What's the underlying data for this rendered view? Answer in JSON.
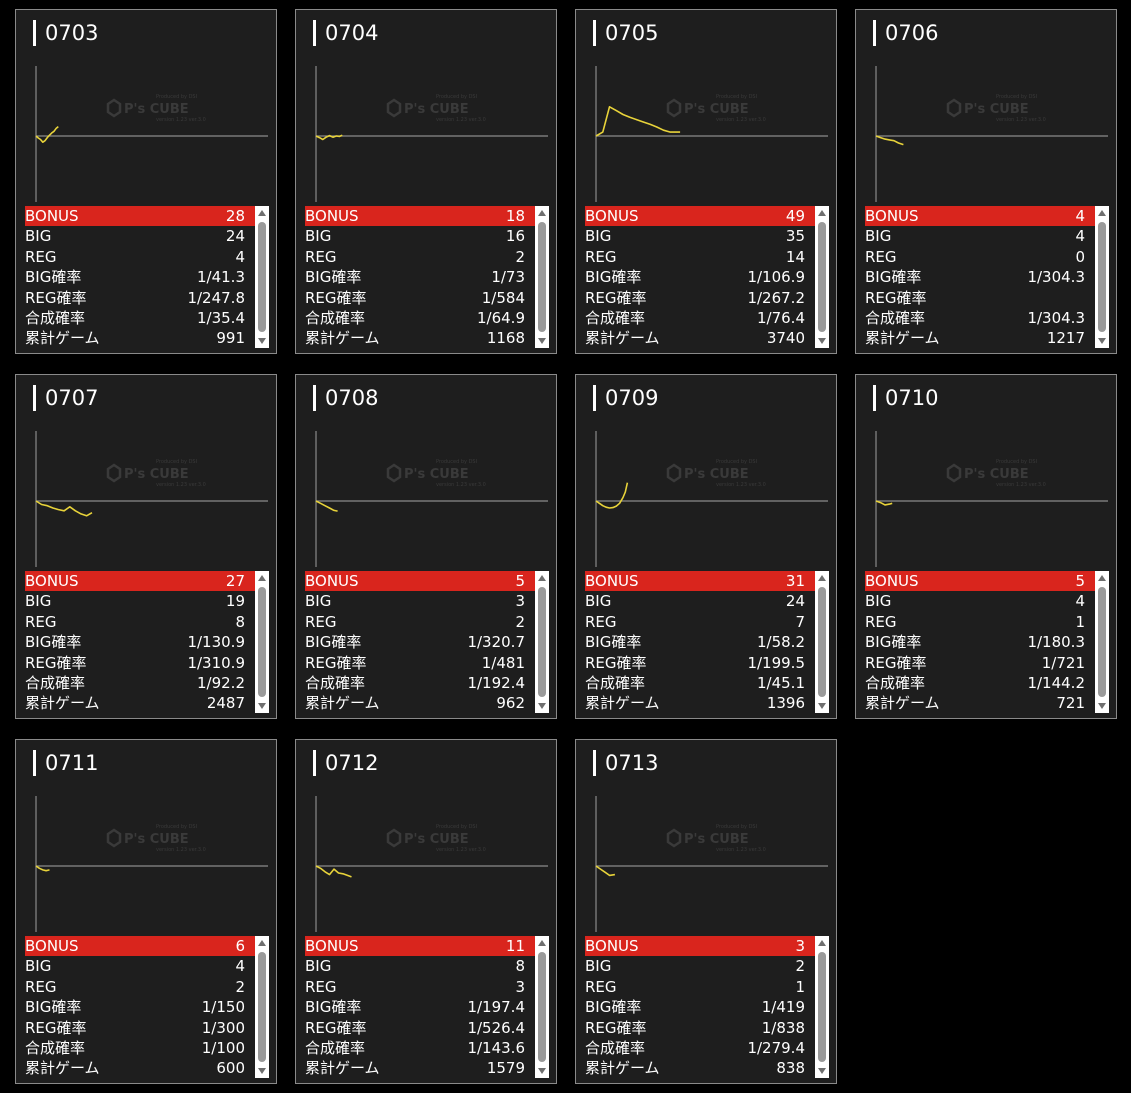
{
  "watermark": {
    "brand": "P's CUBE",
    "tagline": "Produced by DSI",
    "version": "version 1.23 ver.3.0"
  },
  "row_labels": {
    "bonus": "BONUS",
    "big": "BIG",
    "reg": "REG",
    "big_rate": "BIG確率",
    "reg_rate": "REG確率",
    "total_rate": "合成確率",
    "games": "累計ゲーム"
  },
  "colors": {
    "accent": "#d9251d",
    "line": "#e8d33a",
    "baseline": "#8a8a8a",
    "card_bg": "#1e1e1e"
  },
  "icons": {
    "scroll_up": "triangle-up-icon",
    "scroll_down": "triangle-down-icon"
  },
  "cards": [
    {
      "id": "0703",
      "bonus": "28",
      "big": "24",
      "reg": "4",
      "big_rate": "1/41.3",
      "reg_rate": "1/247.8",
      "total_rate": "1/35.4",
      "games": "991",
      "chart_data": {
        "type": "line",
        "x": [
          0,
          100,
          200,
          300,
          400,
          500,
          600,
          700,
          800,
          900,
          991
        ],
        "y": [
          0,
          -50,
          -90,
          -160,
          -120,
          -40,
          20,
          80,
          120,
          200,
          240
        ]
      }
    },
    {
      "id": "0704",
      "bonus": "18",
      "big": "16",
      "reg": "2",
      "big_rate": "1/73",
      "reg_rate": "1/584",
      "total_rate": "1/64.9",
      "games": "1168",
      "chart_data": {
        "type": "line",
        "x": [
          0,
          150,
          300,
          450,
          600,
          750,
          900,
          1050,
          1168
        ],
        "y": [
          0,
          -40,
          -90,
          -30,
          10,
          -30,
          0,
          -10,
          20
        ]
      }
    },
    {
      "id": "0705",
      "bonus": "49",
      "big": "35",
      "reg": "14",
      "big_rate": "1/106.9",
      "reg_rate": "1/267.2",
      "total_rate": "1/76.4",
      "games": "3740",
      "chart_data": {
        "type": "line",
        "x": [
          0,
          300,
          600,
          900,
          1200,
          1500,
          1800,
          2100,
          2400,
          2700,
          3000,
          3300,
          3740
        ],
        "y": [
          0,
          100,
          750,
          650,
          550,
          480,
          420,
          360,
          300,
          230,
          150,
          100,
          100
        ]
      }
    },
    {
      "id": "0706",
      "bonus": "4",
      "big": "4",
      "reg": "0",
      "big_rate": "1/304.3",
      "reg_rate": "",
      "total_rate": "1/304.3",
      "games": "1217",
      "chart_data": {
        "type": "line",
        "x": [
          0,
          200,
          400,
          600,
          800,
          1000,
          1217
        ],
        "y": [
          0,
          -40,
          -80,
          -100,
          -120,
          -180,
          -220
        ]
      }
    },
    {
      "id": "0707",
      "bonus": "27",
      "big": "19",
      "reg": "8",
      "big_rate": "1/130.9",
      "reg_rate": "1/310.9",
      "total_rate": "1/92.2",
      "games": "2487",
      "chart_data": {
        "type": "line",
        "x": [
          0,
          250,
          500,
          750,
          1000,
          1250,
          1500,
          1750,
          2000,
          2250,
          2487
        ],
        "y": [
          0,
          -90,
          -120,
          -180,
          -220,
          -250,
          -150,
          -250,
          -330,
          -380,
          -300
        ]
      }
    },
    {
      "id": "0708",
      "bonus": "5",
      "big": "3",
      "reg": "2",
      "big_rate": "1/320.7",
      "reg_rate": "1/481",
      "total_rate": "1/192.4",
      "games": "962",
      "chart_data": {
        "type": "line",
        "x": [
          0,
          200,
          400,
          600,
          800,
          962
        ],
        "y": [
          0,
          -60,
          -120,
          -180,
          -240,
          -260
        ]
      }
    },
    {
      "id": "0709",
      "bonus": "31",
      "big": "24",
      "reg": "7",
      "big_rate": "1/58.2",
      "reg_rate": "1/199.5",
      "total_rate": "1/45.1",
      "games": "1396",
      "chart_data": {
        "type": "line",
        "x": [
          0,
          150,
          300,
          450,
          600,
          750,
          900,
          1050,
          1200,
          1300,
          1396
        ],
        "y": [
          0,
          -60,
          -120,
          -160,
          -180,
          -170,
          -130,
          -60,
          90,
          230,
          470
        ]
      }
    },
    {
      "id": "0710",
      "bonus": "5",
      "big": "4",
      "reg": "1",
      "big_rate": "1/180.3",
      "reg_rate": "1/721",
      "total_rate": "1/144.2",
      "games": "721",
      "chart_data": {
        "type": "line",
        "x": [
          0,
          200,
          400,
          600,
          721
        ],
        "y": [
          0,
          -40,
          -100,
          -80,
          -60
        ]
      }
    },
    {
      "id": "0711",
      "bonus": "6",
      "big": "4",
      "reg": "2",
      "big_rate": "1/150",
      "reg_rate": "1/300",
      "total_rate": "1/100",
      "games": "600",
      "chart_data": {
        "type": "line",
        "x": [
          0,
          150,
          300,
          450,
          600
        ],
        "y": [
          0,
          -60,
          -100,
          -120,
          -100
        ]
      }
    },
    {
      "id": "0712",
      "bonus": "11",
      "big": "8",
      "reg": "3",
      "big_rate": "1/197.4",
      "reg_rate": "1/526.4",
      "total_rate": "1/143.6",
      "games": "1579",
      "chart_data": {
        "type": "line",
        "x": [
          0,
          200,
          400,
          600,
          800,
          1000,
          1200,
          1400,
          1579
        ],
        "y": [
          0,
          -60,
          -150,
          -220,
          -80,
          -180,
          -200,
          -240,
          -280
        ]
      }
    },
    {
      "id": "0713",
      "bonus": "3",
      "big": "2",
      "reg": "1",
      "big_rate": "1/419",
      "reg_rate": "1/838",
      "total_rate": "1/279.4",
      "games": "838",
      "chart_data": {
        "type": "line",
        "x": [
          0,
          200,
          400,
          600,
          838
        ],
        "y": [
          0,
          -80,
          -160,
          -240,
          -220
        ]
      }
    }
  ]
}
